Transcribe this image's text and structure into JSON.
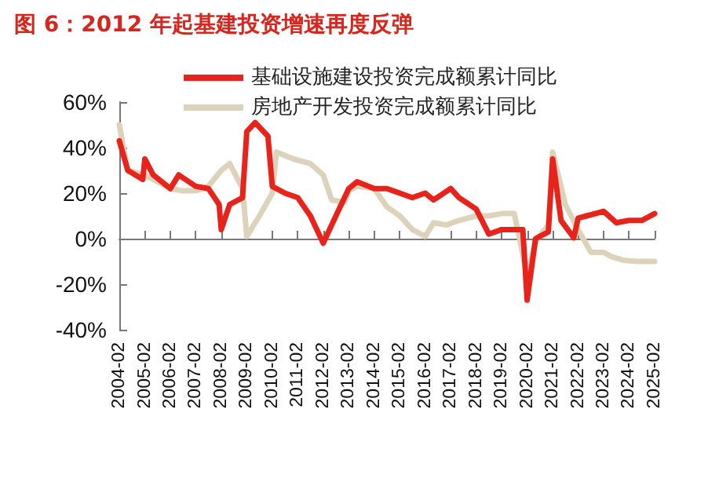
{
  "chart_data": {
    "type": "line",
    "title": "图 6：2012 年起基建投资增速再度反弹",
    "x": [
      "2004-02",
      "2004-06",
      "2005-01",
      "2005-02",
      "2005-06",
      "2006-02",
      "2006-06",
      "2007-02",
      "2007-08",
      "2008-01",
      "2008-02",
      "2008-06",
      "2008-12",
      "2009-02",
      "2009-06",
      "2009-12",
      "2010-02",
      "2010-08",
      "2011-02",
      "2011-08",
      "2012-02",
      "2012-08",
      "2013-02",
      "2013-06",
      "2014-02",
      "2014-08",
      "2015-02",
      "2015-08",
      "2016-02",
      "2016-06",
      "2017-02",
      "2017-06",
      "2018-02",
      "2018-08",
      "2019-02",
      "2019-12",
      "2020-02",
      "2020-06",
      "2020-12",
      "2021-02",
      "2021-06",
      "2021-12",
      "2022-02",
      "2022-06",
      "2023-02",
      "2023-08",
      "2024-02",
      "2024-08",
      "2025-02"
    ],
    "series": [
      {
        "name": "基础设施建设投资完成额累计同比",
        "color": "#e8231c",
        "values": [
          43,
          30,
          26,
          35,
          28,
          22,
          28,
          23,
          22,
          15,
          4,
          15,
          18,
          47,
          51,
          45,
          23,
          20,
          18,
          10,
          -2,
          10,
          22,
          25,
          22,
          22,
          20,
          18,
          20,
          17,
          22,
          18,
          13,
          2,
          4,
          4,
          -27,
          0,
          3,
          35,
          8,
          0.4,
          9,
          10,
          12,
          7,
          8,
          8,
          11
        ]
      },
      {
        "name": "房地产开发投资完成额累计同比",
        "color": "#ddd3bb",
        "x": [
          "2004-02",
          "2004-06",
          "2005-02",
          "2006-02",
          "2006-08",
          "2007-02",
          "2007-08",
          "2008-02",
          "2008-06",
          "2008-12",
          "2009-02",
          "2009-08",
          "2010-02",
          "2010-04",
          "2010-12",
          "2011-08",
          "2012-02",
          "2012-06",
          "2012-12",
          "2013-02",
          "2013-06",
          "2014-02",
          "2014-08",
          "2015-02",
          "2015-08",
          "2016-02",
          "2016-06",
          "2016-12",
          "2017-06",
          "2018-02",
          "2018-08",
          "2019-02",
          "2019-08",
          "2020-02",
          "2020-06",
          "2020-12",
          "2021-02",
          "2021-08",
          "2022-02",
          "2022-08",
          "2023-02",
          "2023-06",
          "2023-12",
          "2024-06",
          "2025-02"
        ],
        "values": [
          50,
          30,
          28,
          22,
          21,
          21,
          23,
          30,
          33,
          22,
          1,
          10,
          20,
          38,
          35,
          33,
          28,
          17,
          16,
          21,
          23,
          22,
          14,
          10,
          4,
          1,
          7,
          6,
          8,
          10,
          10,
          11,
          11,
          -16,
          -1,
          6,
          38,
          15,
          4,
          -6,
          -6,
          -8,
          -9.6,
          -10,
          -10
        ]
      }
    ],
    "xlim": [
      "2004-02",
      "2025-02"
    ],
    "xticks": [
      "2004-02",
      "2005-02",
      "2006-02",
      "2007-02",
      "2008-02",
      "2009-02",
      "2010-02",
      "2011-02",
      "2012-02",
      "2013-02",
      "2014-02",
      "2015-02",
      "2016-02",
      "2017-02",
      "2018-02",
      "2019-02",
      "2020-02",
      "2021-02",
      "2022-02",
      "2023-02",
      "2024-02",
      "2025-02"
    ],
    "ylim": [
      -40,
      60
    ],
    "yticks": [
      {
        "value": -40,
        "label": "-40%"
      },
      {
        "value": -20,
        "label": "-20%"
      },
      {
        "value": 0,
        "label": "0%"
      },
      {
        "value": 20,
        "label": "20%"
      },
      {
        "value": 40,
        "label": "40%"
      },
      {
        "value": 60,
        "label": "60%"
      }
    ],
    "legend": "top",
    "marker": "none",
    "line_style": "solid"
  }
}
